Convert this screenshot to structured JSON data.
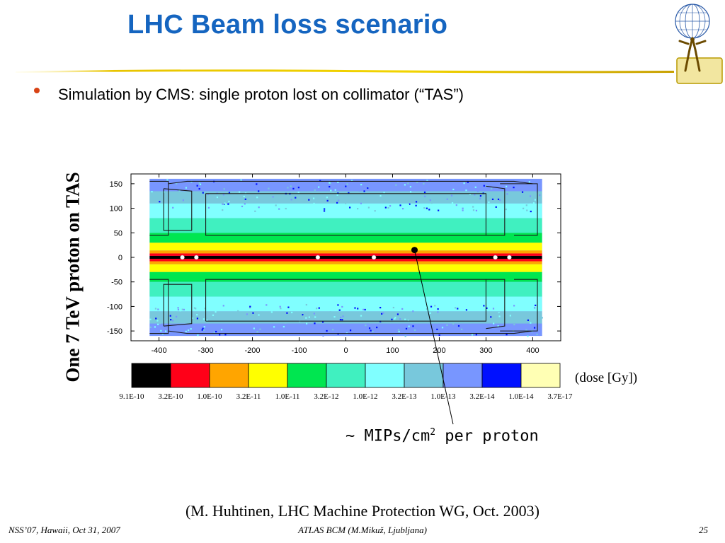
{
  "slide": {
    "title": "LHC Beam loss scenario",
    "bullet": "Simulation by CMS: single proton lost on collimator (“TAS”)",
    "chart_side_label": "One 7 TeV proton on TAS",
    "dose_unit_label": "(dose [Gy])",
    "mips_label_main": "~ MIPs/cm",
    "mips_label_sup": "2",
    "mips_label_tail": " per proton",
    "reference": "(M. Huhtinen, LHC Machine Protection WG, Oct. 2003)",
    "footer": {
      "left": "NSS’07, Hawaii, Oct 31, 2007",
      "center": "ATLAS BCM (M.Mikuž, Ljubljana)",
      "right": "25"
    },
    "colors": {
      "title": "#1565c0",
      "bullet": "#d84315"
    }
  },
  "chart_data": {
    "type": "heatmap",
    "x_ticks": [
      "-400",
      "-300",
      "-200",
      "-100",
      "0",
      "100",
      "200",
      "300",
      "400"
    ],
    "y_ticks": [
      "150",
      "100",
      "50",
      "0",
      "-50",
      "-100",
      "-150"
    ],
    "xlim": [
      -460,
      460
    ],
    "ylim": [
      -170,
      170
    ],
    "data_x_range": [
      -420,
      420
    ],
    "data_y_range": [
      -160,
      160
    ],
    "colorbar": {
      "colors": [
        "#000000",
        "#ff0018",
        "#ffa500",
        "#ffff00",
        "#00e650",
        "#40f0c0",
        "#80ffff",
        "#78c8dc",
        "#7896ff",
        "#0010ff",
        "#ffffb4"
      ],
      "labels": [
        "9.1E-10",
        "3.2E-10",
        "1.0E-10",
        "3.2E-11",
        "1.0E-11",
        "3.2E-12",
        "1.0E-12",
        "3.2E-13",
        "1.0E-13",
        "3.2E-14",
        "1.0E-14",
        "3.7E-17"
      ]
    },
    "dose_bands": [
      {
        "y_from": -3,
        "y_to": 3,
        "level": 0
      },
      {
        "y_from": 3,
        "y_to": 8,
        "level": 1
      },
      {
        "y_from": -8,
        "y_to": -3,
        "level": 1
      },
      {
        "y_from": 8,
        "y_to": 14,
        "level": 2
      },
      {
        "y_from": -14,
        "y_to": -8,
        "level": 2
      },
      {
        "y_from": 14,
        "y_to": 30,
        "level": 3
      },
      {
        "y_from": -30,
        "y_to": -14,
        "level": 3
      },
      {
        "y_from": 30,
        "y_to": 50,
        "level": 4
      },
      {
        "y_from": -50,
        "y_to": -30,
        "level": 4
      },
      {
        "y_from": 50,
        "y_to": 80,
        "level": 5
      },
      {
        "y_from": -80,
        "y_to": -50,
        "level": 5
      },
      {
        "y_from": 80,
        "y_to": 110,
        "level": 6
      },
      {
        "y_from": -110,
        "y_to": -80,
        "level": 6
      },
      {
        "y_from": 110,
        "y_to": 135,
        "level": 7
      },
      {
        "y_from": -135,
        "y_to": -110,
        "level": 7
      },
      {
        "y_from": 135,
        "y_to": 160,
        "level": 8
      },
      {
        "y_from": -160,
        "y_to": -135,
        "level": 8
      }
    ],
    "marked_point": {
      "x": 147,
      "y": 15
    }
  }
}
